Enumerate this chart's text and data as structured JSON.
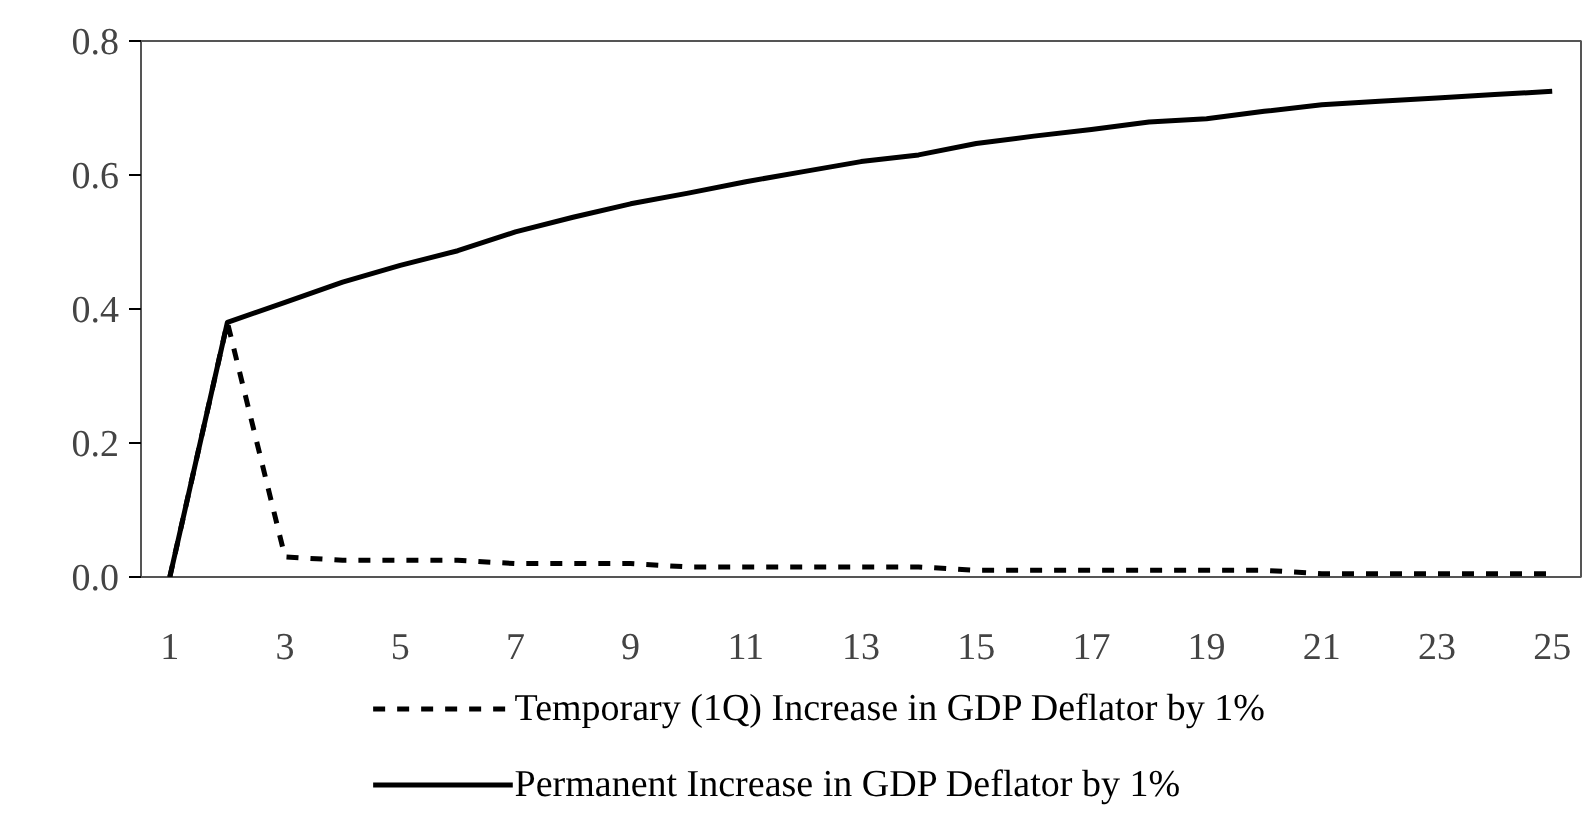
{
  "chart_data": {
    "type": "line",
    "x": [
      1,
      2,
      3,
      4,
      5,
      6,
      7,
      8,
      9,
      10,
      11,
      12,
      13,
      14,
      15,
      16,
      17,
      18,
      19,
      20,
      21,
      22,
      23,
      24,
      25
    ],
    "xlim": [
      0.5,
      25.5
    ],
    "xticks": [
      1,
      3,
      5,
      7,
      9,
      11,
      13,
      15,
      17,
      19,
      21,
      23,
      25
    ],
    "ylim": [
      0,
      0.8
    ],
    "yticks": [
      {
        "value": 0,
        "label": "0.0"
      },
      {
        "value": 0.2,
        "label": "0.2"
      },
      {
        "value": 0.4,
        "label": "0.4"
      },
      {
        "value": 0.6,
        "label": "0.6"
      },
      {
        "value": 0.8,
        "label": "0.8"
      }
    ],
    "grid": false,
    "legend": "bottom",
    "marker": "none",
    "series": [
      {
        "name": "Temporary (1Q) Increase in GDP Deflator by 1%",
        "color": "#000000",
        "line_style": "dashed",
        "values": [
          0,
          0.38,
          0.03,
          0.025,
          0.025,
          0.025,
          0.02,
          0.02,
          0.02,
          0.015,
          0.015,
          0.015,
          0.015,
          0.015,
          0.01,
          0.01,
          0.01,
          0.01,
          0.01,
          0.01,
          0.005,
          0.005,
          0.005,
          0.005,
          0.005
        ]
      },
      {
        "name": "Permanent Increase in GDP Deflator by 1%",
        "color": "#000000",
        "line_style": "solid",
        "values": [
          0,
          0.38,
          0.41,
          0.44,
          0.465,
          0.487,
          0.515,
          0.537,
          0.557,
          0.573,
          0.59,
          0.605,
          0.62,
          0.63,
          0.647,
          0.658,
          0.668,
          0.679,
          0.684,
          0.695,
          0.705,
          0.71,
          0.715,
          0.72,
          0.725
        ]
      }
    ]
  }
}
